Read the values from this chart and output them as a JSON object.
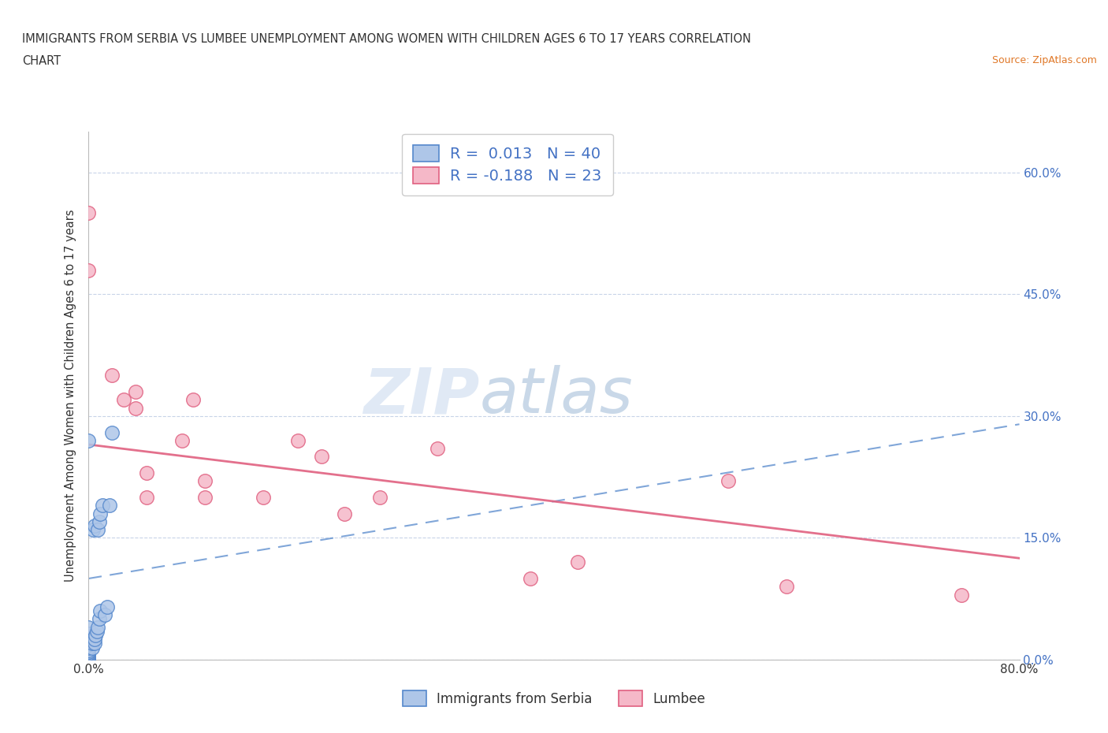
{
  "title_line1": "IMMIGRANTS FROM SERBIA VS LUMBEE UNEMPLOYMENT AMONG WOMEN WITH CHILDREN AGES 6 TO 17 YEARS CORRELATION",
  "title_line2": "CHART",
  "source_text": "Source: ZipAtlas.com",
  "ylabel": "Unemployment Among Women with Children Ages 6 to 17 years",
  "xlim": [
    0.0,
    0.8
  ],
  "ylim": [
    0.0,
    0.65
  ],
  "xticks": [
    0.0,
    0.2,
    0.4,
    0.6,
    0.8
  ],
  "yticks": [
    0.0,
    0.15,
    0.3,
    0.45,
    0.6
  ],
  "xtick_labels": [
    "0.0%",
    "",
    "",
    "",
    "80.0%"
  ],
  "ytick_labels_right": [
    "0.0%",
    "15.0%",
    "30.0%",
    "45.0%",
    "60.0%"
  ],
  "background_color": "#ffffff",
  "grid_color": "#c8d4e8",
  "serbia_color": "#aec6e8",
  "serbia_edge_color": "#5588cc",
  "lumbee_color": "#f5b8c8",
  "lumbee_edge_color": "#e06080",
  "serbia_R": 0.013,
  "serbia_N": 40,
  "lumbee_R": -0.188,
  "lumbee_N": 23,
  "legend_color": "#4472c4",
  "watermark_zip": "ZIP",
  "watermark_atlas": "atlas",
  "serbia_scatter_x": [
    0.0,
    0.0,
    0.0,
    0.0,
    0.0,
    0.0,
    0.0,
    0.0,
    0.0,
    0.0,
    0.0,
    0.0,
    0.0,
    0.0,
    0.0,
    0.0,
    0.0,
    0.0,
    0.0,
    0.0,
    0.003,
    0.003,
    0.004,
    0.004,
    0.005,
    0.005,
    0.005,
    0.006,
    0.007,
    0.008,
    0.008,
    0.009,
    0.009,
    0.01,
    0.01,
    0.012,
    0.014,
    0.016,
    0.018,
    0.02
  ],
  "serbia_scatter_y": [
    0.0,
    0.0,
    0.0,
    0.0,
    0.003,
    0.005,
    0.007,
    0.008,
    0.01,
    0.01,
    0.012,
    0.015,
    0.018,
    0.02,
    0.022,
    0.025,
    0.028,
    0.032,
    0.04,
    0.27,
    0.015,
    0.02,
    0.025,
    0.16,
    0.02,
    0.025,
    0.165,
    0.03,
    0.035,
    0.04,
    0.16,
    0.05,
    0.17,
    0.06,
    0.18,
    0.19,
    0.055,
    0.065,
    0.19,
    0.28
  ],
  "lumbee_scatter_x": [
    0.0,
    0.0,
    0.02,
    0.03,
    0.04,
    0.04,
    0.05,
    0.05,
    0.08,
    0.09,
    0.1,
    0.1,
    0.15,
    0.18,
    0.2,
    0.22,
    0.25,
    0.3,
    0.38,
    0.42,
    0.55,
    0.6,
    0.75
  ],
  "lumbee_scatter_y": [
    0.48,
    0.55,
    0.35,
    0.32,
    0.31,
    0.33,
    0.2,
    0.23,
    0.27,
    0.32,
    0.2,
    0.22,
    0.2,
    0.27,
    0.25,
    0.18,
    0.2,
    0.26,
    0.1,
    0.12,
    0.22,
    0.09,
    0.08
  ],
  "serbia_line_x": [
    0.0,
    0.8
  ],
  "serbia_line_y": [
    0.1,
    0.29
  ],
  "lumbee_line_x": [
    0.0,
    0.8
  ],
  "lumbee_line_y": [
    0.265,
    0.125
  ]
}
